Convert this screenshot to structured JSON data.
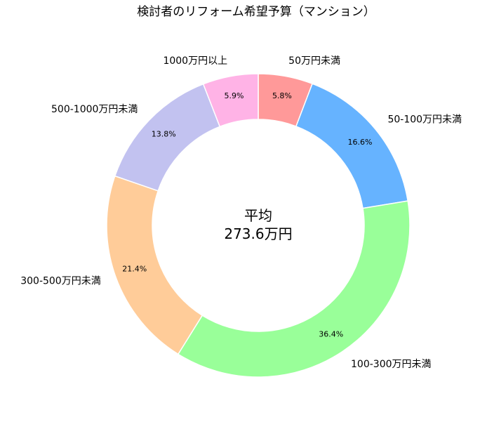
{
  "chart_data": {
    "type": "pie",
    "title": "検討者のリフォーム希望予算（マンション）",
    "center_label_line1": "平均",
    "center_label_line2": "273.6万円",
    "categories": [
      "50万円未満",
      "50-100万円未満",
      "100-300万円未満",
      "300-500万円未満",
      "500-1000万円未満",
      "1000万円以上"
    ],
    "values": [
      5.8,
      16.6,
      36.4,
      21.4,
      13.8,
      5.9
    ],
    "value_labels": [
      "5.8%",
      "16.6%",
      "36.4%",
      "21.4%",
      "13.8%",
      "5.9%"
    ],
    "colors": [
      "#ff9999",
      "#66b3ff",
      "#99ff99",
      "#ffcc99",
      "#c2c2f0",
      "#ffb3e6"
    ],
    "start": "top, clockwise"
  }
}
